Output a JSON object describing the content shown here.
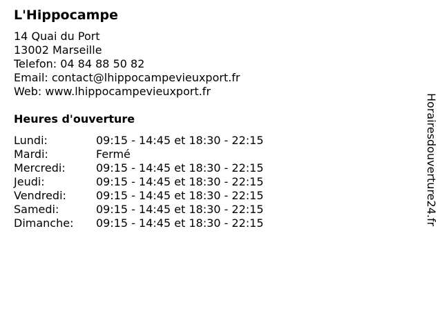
{
  "business": {
    "name": "L'Hippocampe",
    "address_lines": [
      "14 Quai du Port",
      "13002 Marseille",
      "Telefon: 04 84 88 50 82",
      "Email: contact@lhippocampevieuxport.fr",
      "Web: www.lhippocampevieuxport.fr"
    ]
  },
  "hours": {
    "title": "Heures d'ouverture",
    "rows": [
      {
        "day": "Lundi:",
        "time": "09:15 - 14:45 et 18:30 - 22:15"
      },
      {
        "day": "Mardi:",
        "time": "Fermé"
      },
      {
        "day": "Mercredi:",
        "time": "09:15 - 14:45 et 18:30 - 22:15"
      },
      {
        "day": "Jeudi:",
        "time": "09:15 - 14:45 et 18:30 - 22:15"
      },
      {
        "day": "Vendredi:",
        "time": "09:15 - 14:45 et 18:30 - 22:15"
      },
      {
        "day": "Samedi:",
        "time": "09:15 - 14:45 et 18:30 - 22:15"
      },
      {
        "day": "Dimanche:",
        "time": "09:15 - 14:45 et 18:30 - 22:15"
      }
    ]
  },
  "watermark": "Horairesdouverture24.fr"
}
